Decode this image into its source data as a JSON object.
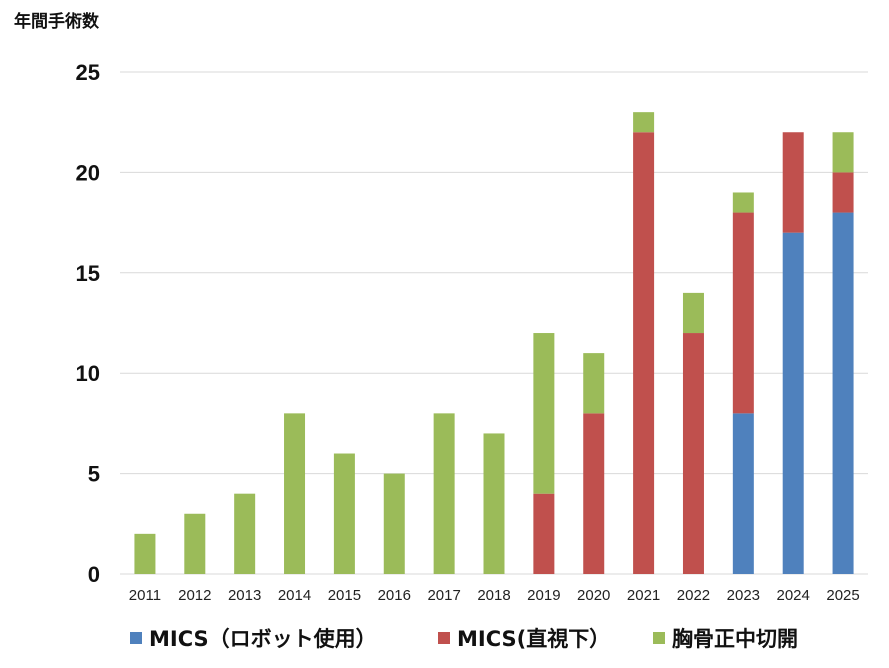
{
  "chart_data": {
    "type": "bar",
    "stacked": true,
    "ylabel": "年間手術数",
    "xlabel": "",
    "ylim": [
      0,
      25
    ],
    "yticks": [
      0,
      5,
      10,
      15,
      20,
      25
    ],
    "grid": true,
    "legend_position": "bottom",
    "categories": [
      "2011",
      "2012",
      "2013",
      "2014",
      "2015",
      "2016",
      "2017",
      "2018",
      "2019",
      "2020",
      "2021",
      "2022",
      "2023",
      "2024",
      "2025"
    ],
    "series": [
      {
        "name": "MICS（ロボット使用）",
        "color": "#4f81bd",
        "values": [
          0,
          0,
          0,
          0,
          0,
          0,
          0,
          0,
          0,
          0,
          0,
          0,
          8,
          17,
          18
        ]
      },
      {
        "name": "MICS(直視下）",
        "color": "#c0504d",
        "values": [
          0,
          0,
          0,
          0,
          0,
          0,
          0,
          0,
          4,
          8,
          22,
          12,
          10,
          5,
          2
        ]
      },
      {
        "name": "胸骨正中切開",
        "color": "#9bbb59",
        "values": [
          2,
          3,
          4,
          8,
          6,
          5,
          8,
          7,
          8,
          3,
          1,
          2,
          1,
          0,
          2
        ]
      }
    ]
  }
}
